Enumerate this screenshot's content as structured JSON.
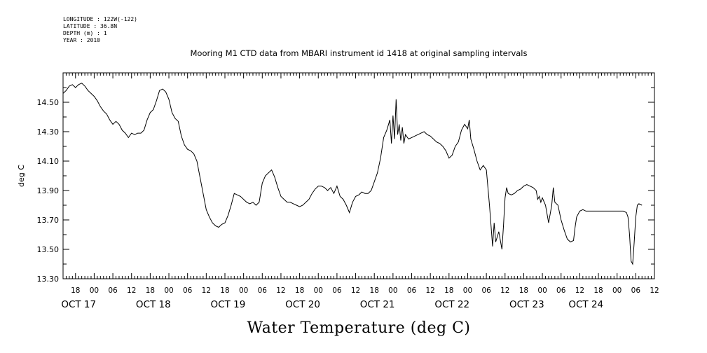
{
  "header": {
    "meta_lines": [
      "LONGITUDE : 122W(-122)",
      "LATITUDE : 36.8N",
      "DEPTH (m) : 1",
      "YEAR : 2010"
    ]
  },
  "chart_data": {
    "type": "line",
    "title": "Mooring M1 CTD data from MBARI instrument id 1418 at original sampling intervals",
    "ylabel": "deg C",
    "caption": "Water Temperature (deg C)",
    "xlim": [
      -10,
      180
    ],
    "ylim": [
      13.3,
      14.7
    ],
    "yticks": [
      13.3,
      13.5,
      13.7,
      13.9,
      14.1,
      14.3,
      14.5
    ],
    "ytick_labels": [
      "13.30",
      "13.50",
      "13.70",
      "13.90",
      "14.10",
      "14.30",
      "14.50"
    ],
    "hour_ticks": [
      {
        "x": -6,
        "label": "18"
      },
      {
        "x": 0,
        "label": "00"
      },
      {
        "x": 6,
        "label": "06"
      },
      {
        "x": 12,
        "label": "12"
      },
      {
        "x": 18,
        "label": "18"
      },
      {
        "x": 24,
        "label": "00"
      },
      {
        "x": 30,
        "label": "06"
      },
      {
        "x": 36,
        "label": "12"
      },
      {
        "x": 42,
        "label": "18"
      },
      {
        "x": 48,
        "label": "00"
      },
      {
        "x": 54,
        "label": "06"
      },
      {
        "x": 60,
        "label": "12"
      },
      {
        "x": 66,
        "label": "18"
      },
      {
        "x": 72,
        "label": "00"
      },
      {
        "x": 78,
        "label": "06"
      },
      {
        "x": 84,
        "label": "12"
      },
      {
        "x": 90,
        "label": "18"
      },
      {
        "x": 96,
        "label": "00"
      },
      {
        "x": 102,
        "label": "06"
      },
      {
        "x": 108,
        "label": "12"
      },
      {
        "x": 114,
        "label": "18"
      },
      {
        "x": 120,
        "label": "00"
      },
      {
        "x": 126,
        "label": "06"
      },
      {
        "x": 132,
        "label": "12"
      },
      {
        "x": 138,
        "label": "18"
      },
      {
        "x": 144,
        "label": "00"
      },
      {
        "x": 150,
        "label": "06"
      },
      {
        "x": 156,
        "label": "12"
      },
      {
        "x": 162,
        "label": "18"
      },
      {
        "x": 168,
        "label": "00"
      },
      {
        "x": 174,
        "label": "06"
      },
      {
        "x": 180,
        "label": "12"
      }
    ],
    "day_labels": [
      {
        "x": -5,
        "label": "OCT 17"
      },
      {
        "x": 19,
        "label": "OCT 18"
      },
      {
        "x": 43,
        "label": "OCT 19"
      },
      {
        "x": 67,
        "label": "OCT 20"
      },
      {
        "x": 91,
        "label": "OCT 21"
      },
      {
        "x": 115,
        "label": "OCT 22"
      },
      {
        "x": 139,
        "label": "OCT 23"
      },
      {
        "x": 158,
        "label": "OCT 24"
      }
    ],
    "series": [
      {
        "values": [
          [
            -10,
            14.56
          ],
          [
            -9,
            14.58
          ],
          [
            -8,
            14.61
          ],
          [
            -7,
            14.62
          ],
          [
            -6,
            14.6
          ],
          [
            -5,
            14.62
          ],
          [
            -4,
            14.63
          ],
          [
            -3,
            14.61
          ],
          [
            -2,
            14.58
          ],
          [
            -1,
            14.56
          ],
          [
            0,
            14.54
          ],
          [
            1,
            14.51
          ],
          [
            2,
            14.47
          ],
          [
            3,
            14.44
          ],
          [
            4,
            14.42
          ],
          [
            5,
            14.38
          ],
          [
            6,
            14.35
          ],
          [
            7,
            14.37
          ],
          [
            8,
            14.35
          ],
          [
            9,
            14.31
          ],
          [
            10,
            14.29
          ],
          [
            11,
            14.26
          ],
          [
            12,
            14.29
          ],
          [
            13,
            14.28
          ],
          [
            14,
            14.29
          ],
          [
            15,
            14.29
          ],
          [
            16,
            14.31
          ],
          [
            17,
            14.38
          ],
          [
            18,
            14.43
          ],
          [
            19,
            14.45
          ],
          [
            20,
            14.51
          ],
          [
            21,
            14.58
          ],
          [
            22,
            14.59
          ],
          [
            23,
            14.57
          ],
          [
            24,
            14.52
          ],
          [
            25,
            14.43
          ],
          [
            26,
            14.39
          ],
          [
            27,
            14.37
          ],
          [
            28,
            14.27
          ],
          [
            29,
            14.21
          ],
          [
            30,
            14.18
          ],
          [
            31,
            14.17
          ],
          [
            32,
            14.15
          ],
          [
            33,
            14.1
          ],
          [
            34,
            13.99
          ],
          [
            35,
            13.88
          ],
          [
            36,
            13.77
          ],
          [
            37,
            13.72
          ],
          [
            38,
            13.68
          ],
          [
            39,
            13.66
          ],
          [
            40,
            13.65
          ],
          [
            41,
            13.67
          ],
          [
            42,
            13.68
          ],
          [
            43,
            13.73
          ],
          [
            44,
            13.8
          ],
          [
            45,
            13.88
          ],
          [
            46,
            13.87
          ],
          [
            47,
            13.86
          ],
          [
            48,
            13.84
          ],
          [
            49,
            13.82
          ],
          [
            50,
            13.81
          ],
          [
            51,
            13.82
          ],
          [
            52,
            13.8
          ],
          [
            53,
            13.82
          ],
          [
            54,
            13.95
          ],
          [
            55,
            14
          ],
          [
            56,
            14.02
          ],
          [
            57,
            14.04
          ],
          [
            58,
            13.99
          ],
          [
            59,
            13.92
          ],
          [
            60,
            13.86
          ],
          [
            61,
            13.84
          ],
          [
            62,
            13.82
          ],
          [
            63,
            13.82
          ],
          [
            64,
            13.81
          ],
          [
            65,
            13.8
          ],
          [
            66,
            13.79
          ],
          [
            67,
            13.8
          ],
          [
            68,
            13.82
          ],
          [
            69,
            13.84
          ],
          [
            70,
            13.88
          ],
          [
            71,
            13.91
          ],
          [
            72,
            13.93
          ],
          [
            73,
            13.93
          ],
          [
            74,
            13.92
          ],
          [
            75,
            13.9
          ],
          [
            76,
            13.92
          ],
          [
            77,
            13.88
          ],
          [
            78,
            13.93
          ],
          [
            79,
            13.86
          ],
          [
            80,
            13.84
          ],
          [
            81,
            13.8
          ],
          [
            82,
            13.75
          ],
          [
            83,
            13.82
          ],
          [
            84,
            13.86
          ],
          [
            85,
            13.87
          ],
          [
            86,
            13.89
          ],
          [
            87,
            13.88
          ],
          [
            88,
            13.88
          ],
          [
            89,
            13.9
          ],
          [
            90,
            13.96
          ],
          [
            91,
            14.02
          ],
          [
            92,
            14.12
          ],
          [
            93,
            14.26
          ],
          [
            94,
            14.31
          ],
          [
            95,
            14.38
          ],
          [
            95.5,
            14.22
          ],
          [
            96,
            14.41
          ],
          [
            96.5,
            14.25
          ],
          [
            97,
            14.52
          ],
          [
            97.5,
            14.28
          ],
          [
            98,
            14.35
          ],
          [
            98.5,
            14.24
          ],
          [
            99,
            14.33
          ],
          [
            99.5,
            14.22
          ],
          [
            100,
            14.28
          ],
          [
            101,
            14.25
          ],
          [
            102,
            14.26
          ],
          [
            103,
            14.27
          ],
          [
            104,
            14.28
          ],
          [
            105,
            14.29
          ],
          [
            106,
            14.3
          ],
          [
            107,
            14.28
          ],
          [
            108,
            14.27
          ],
          [
            109,
            14.25
          ],
          [
            110,
            14.23
          ],
          [
            111,
            14.22
          ],
          [
            112,
            14.2
          ],
          [
            113,
            14.17
          ],
          [
            114,
            14.12
          ],
          [
            115,
            14.14
          ],
          [
            116,
            14.2
          ],
          [
            117,
            14.23
          ],
          [
            118,
            14.31
          ],
          [
            119,
            14.35
          ],
          [
            120,
            14.32
          ],
          [
            120.5,
            14.38
          ],
          [
            121,
            14.25
          ],
          [
            122,
            14.18
          ],
          [
            123,
            14.1
          ],
          [
            124,
            14.04
          ],
          [
            125,
            14.07
          ],
          [
            126,
            14.04
          ],
          [
            127,
            13.8
          ],
          [
            128,
            13.52
          ],
          [
            128.5,
            13.68
          ],
          [
            129,
            13.55
          ],
          [
            130,
            13.62
          ],
          [
            131,
            13.5
          ],
          [
            131.5,
            13.66
          ],
          [
            132,
            13.85
          ],
          [
            132.5,
            13.92
          ],
          [
            133,
            13.88
          ],
          [
            134,
            13.87
          ],
          [
            135,
            13.88
          ],
          [
            136,
            13.9
          ],
          [
            137,
            13.91
          ],
          [
            138,
            13.93
          ],
          [
            139,
            13.94
          ],
          [
            140,
            13.93
          ],
          [
            141,
            13.92
          ],
          [
            142,
            13.9
          ],
          [
            142.5,
            13.84
          ],
          [
            143,
            13.86
          ],
          [
            143.5,
            13.82
          ],
          [
            144,
            13.85
          ],
          [
            145,
            13.8
          ],
          [
            146,
            13.68
          ],
          [
            146.5,
            13.74
          ],
          [
            147,
            13.8
          ],
          [
            147.5,
            13.92
          ],
          [
            148,
            13.82
          ],
          [
            149,
            13.8
          ],
          [
            150,
            13.7
          ],
          [
            151,
            13.63
          ],
          [
            152,
            13.57
          ],
          [
            153,
            13.55
          ],
          [
            154,
            13.56
          ],
          [
            154.5,
            13.65
          ],
          [
            155,
            13.72
          ],
          [
            156,
            13.76
          ],
          [
            157,
            13.77
          ],
          [
            158,
            13.76
          ],
          [
            160,
            13.76
          ],
          [
            162,
            13.76
          ],
          [
            164,
            13.76
          ],
          [
            166,
            13.76
          ],
          [
            168,
            13.76
          ],
          [
            170,
            13.76
          ],
          [
            171,
            13.75
          ],
          [
            171.5,
            13.72
          ],
          [
            172,
            13.6
          ],
          [
            172.5,
            13.42
          ],
          [
            173,
            13.4
          ],
          [
            173.5,
            13.55
          ],
          [
            174,
            13.72
          ],
          [
            174.5,
            13.8
          ],
          [
            175,
            13.81
          ],
          [
            176,
            13.8
          ]
        ]
      }
    ],
    "grid": false
  }
}
